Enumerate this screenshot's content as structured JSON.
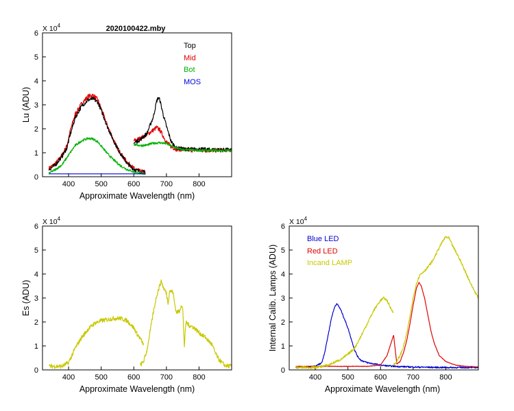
{
  "chart_data": [
    {
      "id": "lu",
      "type": "line",
      "title": "2020100422.mby",
      "xlabel": "Approximate Wavelength (nm)",
      "ylabel": "Lu (ADU)",
      "xlim": [
        320,
        900
      ],
      "ylim": [
        0,
        6
      ],
      "yexp_label": "X 10",
      "yexp_power": "4",
      "xticks": [
        400,
        500,
        600,
        700,
        800
      ],
      "xtick_labels": [
        "400",
        "500",
        "600",
        "700",
        "800"
      ],
      "yticks": [
        0,
        1,
        2,
        3,
        4,
        5,
        6
      ],
      "ytick_labels": [
        "0",
        "1",
        "2",
        "3",
        "4",
        "5",
        "6"
      ],
      "legend_position": "top-right",
      "series": [
        {
          "name": "Mid",
          "color": "#e00000",
          "noise": 0.09,
          "x": [
            340,
            360,
            380,
            395,
            405,
            420,
            440,
            460,
            475,
            490,
            505,
            520,
            540,
            560,
            580,
            600,
            620,
            635,
            null,
            600,
            620,
            640,
            660,
            670,
            680,
            690,
            700,
            715,
            730,
            760,
            800,
            850,
            900
          ],
          "y": [
            0.35,
            0.55,
            0.9,
            1.3,
            1.9,
            2.6,
            3.05,
            3.35,
            3.4,
            3.2,
            2.65,
            2.1,
            1.45,
            0.95,
            0.6,
            0.35,
            0.22,
            0.2,
            null,
            1.5,
            1.6,
            1.75,
            1.95,
            2.05,
            1.95,
            1.7,
            1.45,
            1.25,
            1.15,
            1.12,
            1.1,
            1.1,
            1.12
          ]
        },
        {
          "name": "Top",
          "color": "#000000",
          "noise": 0.08,
          "x": [
            340,
            360,
            380,
            395,
            405,
            420,
            440,
            460,
            475,
            490,
            505,
            520,
            540,
            560,
            580,
            600,
            620,
            635,
            null,
            600,
            620,
            640,
            660,
            670,
            675,
            680,
            690,
            700,
            715,
            730,
            760,
            800,
            850,
            900
          ],
          "y": [
            0.3,
            0.5,
            0.85,
            1.2,
            1.75,
            2.45,
            2.95,
            3.2,
            3.25,
            3.1,
            2.6,
            2.05,
            1.45,
            0.95,
            0.55,
            0.32,
            0.2,
            0.18,
            null,
            1.4,
            1.55,
            1.8,
            2.5,
            3.15,
            3.3,
            3.2,
            2.6,
            2.1,
            1.45,
            1.2,
            1.15,
            1.15,
            1.12,
            1.12
          ]
        },
        {
          "name": "Bot",
          "color": "#00b000",
          "noise": 0.05,
          "x": [
            340,
            360,
            380,
            400,
            420,
            440,
            460,
            475,
            490,
            505,
            520,
            540,
            560,
            580,
            600,
            620,
            635,
            null,
            600,
            620,
            640,
            660,
            680,
            700,
            720,
            740,
            760,
            800,
            850,
            900
          ],
          "y": [
            0.15,
            0.3,
            0.5,
            0.9,
            1.3,
            1.5,
            1.6,
            1.58,
            1.45,
            1.2,
            0.95,
            0.68,
            0.45,
            0.3,
            0.2,
            0.15,
            0.12,
            null,
            1.35,
            1.3,
            1.32,
            1.4,
            1.42,
            1.38,
            1.25,
            1.15,
            1.12,
            1.1,
            1.1,
            1.1
          ]
        },
        {
          "name": "MOS",
          "color": "#0000e0",
          "noise": 0.0,
          "x": [
            340,
            635
          ],
          "y": [
            0.12,
            0.12
          ]
        }
      ]
    },
    {
      "id": "es",
      "type": "line",
      "title": "",
      "xlabel": "Approximate Wavelength (nm)",
      "ylabel": "Es (ADU)",
      "xlim": [
        320,
        900
      ],
      "ylim": [
        0,
        6
      ],
      "yexp_label": "X 10",
      "yexp_power": "4",
      "xticks": [
        400,
        500,
        600,
        700,
        800
      ],
      "xtick_labels": [
        "400",
        "500",
        "600",
        "700",
        "800"
      ],
      "yticks": [
        0,
        1,
        2,
        3,
        4,
        5,
        6
      ],
      "ytick_labels": [
        "0",
        "1",
        "2",
        "3",
        "4",
        "5",
        "6"
      ],
      "legend_position": "none",
      "series": [
        {
          "name": "Es",
          "color": "#c8c800",
          "noise": 0.09,
          "x": [
            340,
            360,
            380,
            400,
            420,
            440,
            460,
            480,
            500,
            520,
            540,
            560,
            580,
            600,
            610,
            620,
            630,
            null,
            620,
            630,
            640,
            650,
            660,
            670,
            680,
            685,
            690,
            700,
            705,
            710,
            720,
            725,
            730,
            740,
            745,
            750,
            755,
            760,
            770,
            780,
            790,
            800,
            810,
            820,
            840,
            850,
            860,
            870,
            880,
            900
          ],
          "y": [
            0.15,
            0.15,
            0.15,
            0.3,
            0.9,
            1.35,
            1.7,
            1.95,
            2.05,
            2.1,
            2.15,
            2.15,
            2.05,
            1.75,
            1.5,
            1.3,
            1.05,
            null,
            0.2,
            0.35,
            0.8,
            1.6,
            2.4,
            3.1,
            3.55,
            3.7,
            3.45,
            3.2,
            2.8,
            3.3,
            3.25,
            2.8,
            2.4,
            2.45,
            2.7,
            2.55,
            1.0,
            2.0,
            1.85,
            1.8,
            1.7,
            1.55,
            1.45,
            1.35,
            1.05,
            0.7,
            0.45,
            0.3,
            0.18,
            0.15
          ]
        }
      ]
    },
    {
      "id": "lamps",
      "type": "line",
      "title": "",
      "xlabel": "Approximate Wavelength (nm)",
      "ylabel": "Internal Calib. Lamps  (ADU)",
      "xlim": [
        320,
        900
      ],
      "ylim": [
        0,
        6
      ],
      "yexp_label": "X 10",
      "yexp_power": "4",
      "xticks": [
        400,
        500,
        600,
        700,
        800
      ],
      "xtick_labels": [
        "400",
        "500",
        "600",
        "700",
        "800"
      ],
      "yticks": [
        0,
        1,
        2,
        3,
        4,
        5,
        6
      ],
      "ytick_labels": [
        "0",
        "1",
        "2",
        "3",
        "4",
        "5",
        "6"
      ],
      "legend_position": "top-left",
      "series": [
        {
          "name": "Blue LED",
          "color": "#0000d0",
          "noise": 0.03,
          "x": [
            340,
            380,
            400,
            420,
            430,
            440,
            450,
            460,
            465,
            470,
            480,
            490,
            500,
            510,
            520,
            530,
            540,
            560,
            580,
            600,
            620,
            640,
            700,
            800,
            900
          ],
          "y": [
            0.1,
            0.12,
            0.15,
            0.3,
            0.8,
            1.5,
            2.2,
            2.65,
            2.75,
            2.7,
            2.45,
            2.1,
            1.75,
            1.3,
            0.85,
            0.55,
            0.4,
            0.3,
            0.25,
            0.2,
            0.17,
            0.15,
            0.12,
            0.1,
            0.1
          ]
        },
        {
          "name": "Red LED",
          "color": "#e00000",
          "noise": 0.01,
          "x": [
            340,
            400,
            500,
            560,
            600,
            620,
            640,
            650,
            660,
            670,
            680,
            690,
            700,
            710,
            718,
            725,
            735,
            745,
            755,
            765,
            780,
            800,
            830,
            860,
            900
          ],
          "y": [
            0.15,
            0.15,
            0.15,
            0.15,
            0.2,
            0.6,
            1.45,
            0.25,
            0.35,
            0.7,
            1.2,
            1.9,
            2.7,
            3.4,
            3.65,
            3.5,
            3.0,
            2.3,
            1.6,
            1.1,
            0.6,
            0.35,
            0.2,
            0.15,
            0.12
          ]
        },
        {
          "name": "Incand LAMP",
          "color": "#c8c800",
          "noise": 0.05,
          "x": [
            340,
            400,
            440,
            480,
            500,
            520,
            540,
            560,
            580,
            600,
            610,
            620,
            630,
            640,
            null,
            640,
            650,
            660,
            670,
            680,
            690,
            700,
            710,
            720,
            740,
            760,
            780,
            790,
            800,
            810,
            820,
            840,
            860,
            880,
            900
          ],
          "y": [
            0.1,
            0.1,
            0.2,
            0.45,
            0.65,
            0.9,
            1.4,
            1.95,
            2.5,
            2.9,
            3.0,
            2.9,
            2.6,
            2.4,
            null,
            0.2,
            0.35,
            0.6,
            0.95,
            1.5,
            2.2,
            3.0,
            3.6,
            3.95,
            4.2,
            4.55,
            5.1,
            5.35,
            5.55,
            5.5,
            5.2,
            4.7,
            4.1,
            3.5,
            3.0
          ]
        }
      ]
    }
  ]
}
